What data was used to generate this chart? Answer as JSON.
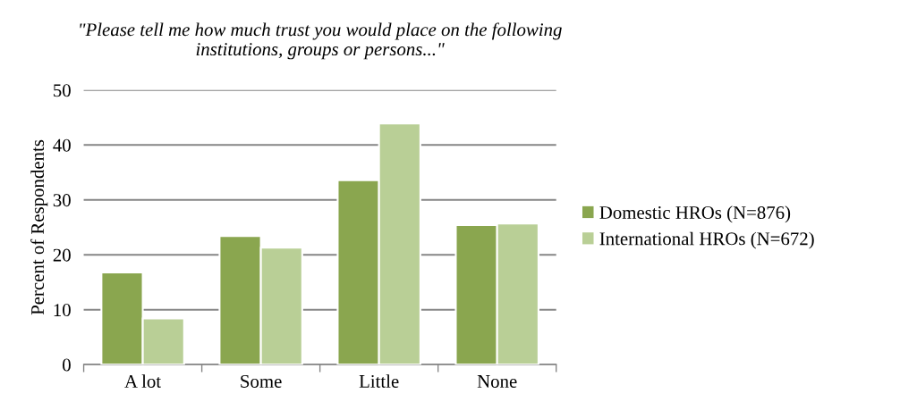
{
  "chart_data": {
    "type": "bar",
    "title": "\"Please tell me how much trust you would place on the following\ninstitutions, groups or persons...\"",
    "ylabel": "Percent of Respondents",
    "categories": [
      "A lot",
      "Some",
      "Little",
      "None"
    ],
    "series": [
      {
        "name": "Domestic HROs (N=876)",
        "color": "#8aa64f",
        "values": [
          16.8,
          23.4,
          33.6,
          25.4
        ]
      },
      {
        "name": "International HROs (N=672)",
        "color": "#b9cf96",
        "values": [
          8.4,
          21.3,
          43.9,
          25.7
        ]
      }
    ],
    "ylim": [
      0,
      50
    ],
    "yticks": [
      0,
      10,
      20,
      30,
      40,
      50
    ],
    "grid": "y",
    "legend": "right"
  }
}
